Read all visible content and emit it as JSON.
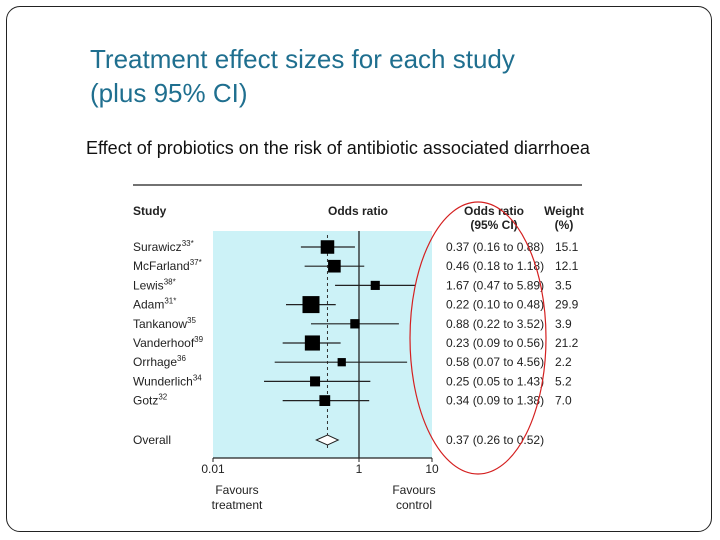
{
  "slide": {
    "title": "Treatment effect sizes for each study\n(plus 95% CI)",
    "subtitle": "Effect of probiotics on the risk of antibiotic associated diarrhoea"
  },
  "colors": {
    "title": "#1f6f8f",
    "plot_background": "#ccf2f7",
    "marker": "#000000",
    "annotation_ellipse": "#d42020"
  },
  "chart_data": {
    "type": "forest",
    "x_scale": "log",
    "xlim": [
      0.01,
      10
    ],
    "x_ticks": [
      "0.01",
      "1",
      "10"
    ],
    "headers": {
      "study": "Study",
      "axis": "Odds ratio",
      "or_line1": "Odds ratio",
      "or_line2": "(95% CI)",
      "weight_line1": "Weight",
      "weight_line2": "(%)"
    },
    "favours_left": [
      "Favours",
      "treatment"
    ],
    "favours_right": [
      "Favours",
      "control"
    ],
    "studies": [
      {
        "name": "Surawicz",
        "ref": "33*",
        "or": 0.37,
        "lo": 0.16,
        "hi": 0.88,
        "ci_text": "0.37 (0.16 to 0.88)",
        "weight": 15.1,
        "weight_text": "15.1"
      },
      {
        "name": "McFarland",
        "ref": "37*",
        "or": 0.46,
        "lo": 0.18,
        "hi": 1.18,
        "ci_text": "0.46 (0.18 to 1.18)",
        "weight": 12.1,
        "weight_text": "12.1"
      },
      {
        "name": "Lewis",
        "ref": "38*",
        "or": 1.67,
        "lo": 0.47,
        "hi": 5.89,
        "ci_text": "1.67 (0.47 to 5.89)",
        "weight": 3.5,
        "weight_text": "3.5"
      },
      {
        "name": "Adam",
        "ref": "31*",
        "or": 0.22,
        "lo": 0.1,
        "hi": 0.48,
        "ci_text": "0.22 (0.10 to 0.48)",
        "weight": 29.9,
        "weight_text": "29.9"
      },
      {
        "name": "Tankanow",
        "ref": "35",
        "or": 0.88,
        "lo": 0.22,
        "hi": 3.52,
        "ci_text": "0.88 (0.22 to 3.52)",
        "weight": 3.9,
        "weight_text": "3.9"
      },
      {
        "name": "Vanderhoof",
        "ref": "39",
        "or": 0.23,
        "lo": 0.09,
        "hi": 0.56,
        "ci_text": "0.23 (0.09 to 0.56)",
        "weight": 21.2,
        "weight_text": "21.2"
      },
      {
        "name": "Orrhage",
        "ref": "36",
        "or": 0.58,
        "lo": 0.07,
        "hi": 4.56,
        "ci_text": "0.58 (0.07 to 4.56)",
        "weight": 2.2,
        "weight_text": "2.2"
      },
      {
        "name": "Wunderlich",
        "ref": "34",
        "or": 0.25,
        "lo": 0.05,
        "hi": 1.43,
        "ci_text": "0.25 (0.05 to 1.43)",
        "weight": 5.2,
        "weight_text": "5.2"
      },
      {
        "name": "Gotz",
        "ref": "32",
        "or": 0.34,
        "lo": 0.09,
        "hi": 1.38,
        "ci_text": "0.34 (0.09 to 1.38)",
        "weight": 7.0,
        "weight_text": "7.0"
      }
    ],
    "overall": {
      "name": "Overall",
      "or": 0.37,
      "lo": 0.26,
      "hi": 0.52,
      "ci_text": "0.37 (0.26 to 0.52)"
    },
    "reference_line": 1
  }
}
